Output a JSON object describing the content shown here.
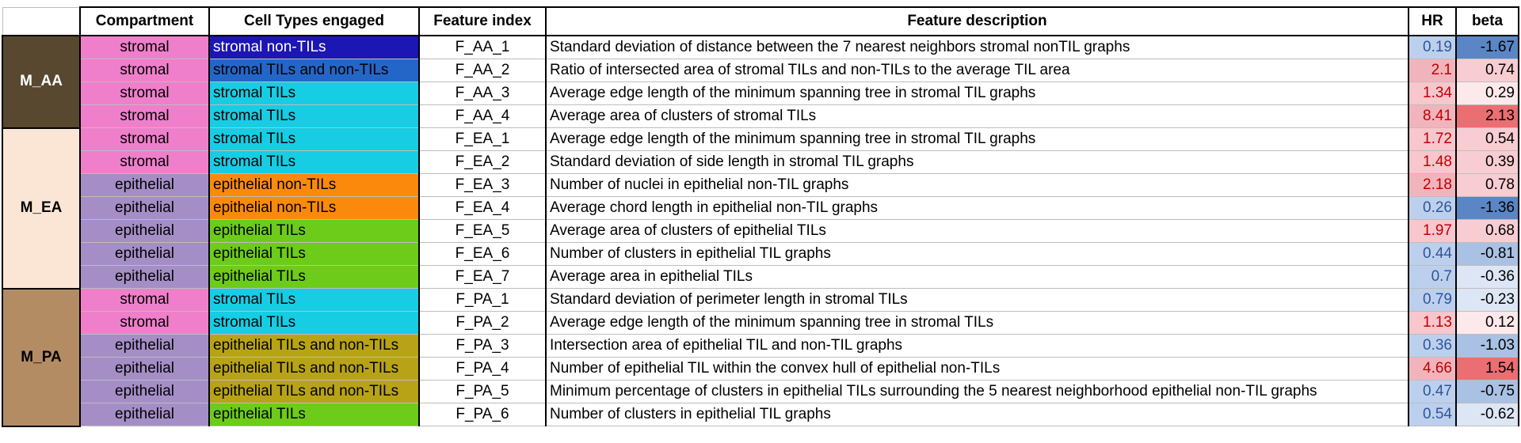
{
  "headers": {
    "compartment": "Compartment",
    "cell_types": "Cell Types engaged",
    "feature_index": "Feature index",
    "feature_description": "Feature description",
    "hr": "HR",
    "beta": "beta"
  },
  "colors": {
    "model_M_AA": "#58482f",
    "model_M_EA": "#fbe6d6",
    "model_M_PA": "#b48c64",
    "compartment_stromal": "#ef7fcb",
    "compartment_epithelial": "#a58ec6",
    "cell_stromal_non_tils": "#1c16b4",
    "cell_stromal_tils_and_non_tils": "#2466c8",
    "cell_stromal_tils": "#16cde4",
    "cell_epithelial_non_tils": "#fb8a0c",
    "cell_epithelial_tils": "#6ccc19",
    "cell_epithelial_tils_and_non_tils": "#b8a316",
    "hr_low": "#bcd0ed",
    "hr_high": "#f8c6cd",
    "hr_very_high": "#f2b4bc",
    "beta_very_low": "#5b86c5",
    "beta_low": "#a9c1e3",
    "beta_mid_low": "#dde6f4",
    "beta_mid_high": "#fde9ec",
    "beta_high": "#f8cdd2",
    "beta_very_high": "#eb6e72"
  },
  "groups": [
    {
      "model": "M_AA",
      "rows": [
        {
          "compartment": "stromal",
          "cell_types": "stromal non-TILs",
          "feature_index": "F_AA_1",
          "description": "Standard deviation of distance between the 7 nearest neighbors  stromal nonTIL graphs",
          "hr": "0.19",
          "beta": "-1.67"
        },
        {
          "compartment": "stromal",
          "cell_types": "stromal TILs and non-TILs",
          "feature_index": "F_AA_2",
          "description": "Ratio of intersected area of stromal TILs and non-TILs to the average TIL area",
          "hr": "2.1",
          "beta": "0.74"
        },
        {
          "compartment": "stromal",
          "cell_types": "stromal TILs",
          "feature_index": "F_AA_3",
          "description": "Average edge length of the minimum spanning tree in stromal TIL graphs",
          "hr": "1.34",
          "beta": "0.29"
        },
        {
          "compartment": "stromal",
          "cell_types": "stromal TILs",
          "feature_index": "F_AA_4",
          "description": "Average area of clusters of stromal TILs",
          "hr": "8.41",
          "beta": "2.13"
        }
      ]
    },
    {
      "model": "M_EA",
      "rows": [
        {
          "compartment": "stromal",
          "cell_types": "stromal TILs",
          "feature_index": "F_EA_1",
          "description": "Average edge length of the minimum spanning tree in stromal TIL graphs",
          "hr": "1.72",
          "beta": "0.54"
        },
        {
          "compartment": "stromal",
          "cell_types": "stromal TILs",
          "feature_index": "F_EA_2",
          "description": "Standard deviation of side length in stromal TIL graphs",
          "hr": "1.48",
          "beta": "0.39"
        },
        {
          "compartment": "epithelial",
          "cell_types": "epithelial non-TILs",
          "feature_index": "F_EA_3",
          "description": "Number of nuclei in epithelial non-TIL graphs",
          "hr": "2.18",
          "beta": "0.78"
        },
        {
          "compartment": "epithelial",
          "cell_types": "epithelial non-TILs",
          "feature_index": "F_EA_4",
          "description": "Average chord length in epithelial non-TIL graphs",
          "hr": "0.26",
          "beta": "-1.36"
        },
        {
          "compartment": "epithelial",
          "cell_types": "epithelial TILs",
          "feature_index": "F_EA_5",
          "description": "Average area of clusters of epithelial TILs",
          "hr": "1.97",
          "beta": "0.68"
        },
        {
          "compartment": "epithelial",
          "cell_types": "epithelial TILs",
          "feature_index": "F_EA_6",
          "description": "Number of clusters in epithelial TIL graphs",
          "hr": "0.44",
          "beta": "-0.81"
        },
        {
          "compartment": "epithelial",
          "cell_types": "epithelial TILs",
          "feature_index": "F_EA_7",
          "description": "Average area in epithelial TILs",
          "hr": "0.7",
          "beta": "-0.36"
        }
      ]
    },
    {
      "model": "M_PA",
      "rows": [
        {
          "compartment": "stromal",
          "cell_types": "stromal TILs",
          "feature_index": "F_PA_1",
          "description": "Standard deviation of perimeter length in stromal TILs",
          "hr": "0.79",
          "beta": "-0.23"
        },
        {
          "compartment": "stromal",
          "cell_types": "stromal TILs",
          "feature_index": "F_PA_2",
          "description": "Average edge length of the minimum spanning tree in stromal TILs",
          "hr": "1.13",
          "beta": "0.12"
        },
        {
          "compartment": "epithelial",
          "cell_types": "epithelial TILs and non-TILs",
          "feature_index": "F_PA_3",
          "description": "Intersection area of epithelial TIL and non-TIL graphs",
          "hr": "0.36",
          "beta": "-1.03"
        },
        {
          "compartment": "epithelial",
          "cell_types": "epithelial TILs and non-TILs",
          "feature_index": "F_PA_4",
          "description": "Number of epithelial TIL within the convex hull of epithelial non-TILs",
          "hr": "4.66",
          "beta": "1.54"
        },
        {
          "compartment": "epithelial",
          "cell_types": "epithelial TILs and non-TILs",
          "feature_index": "F_PA_5",
          "description": "Minimum percentage of clusters in epithelial TILs surrounding the 5 nearest neighborhood epithelial non-TIL graphs",
          "hr": "0.47",
          "beta": "-0.75"
        },
        {
          "compartment": "epithelial",
          "cell_types": "epithelial TILs",
          "feature_index": "F_PA_6",
          "description": "Number of clusters in epithelial TIL graphs",
          "hr": "0.54",
          "beta": "-0.62"
        }
      ]
    }
  ]
}
